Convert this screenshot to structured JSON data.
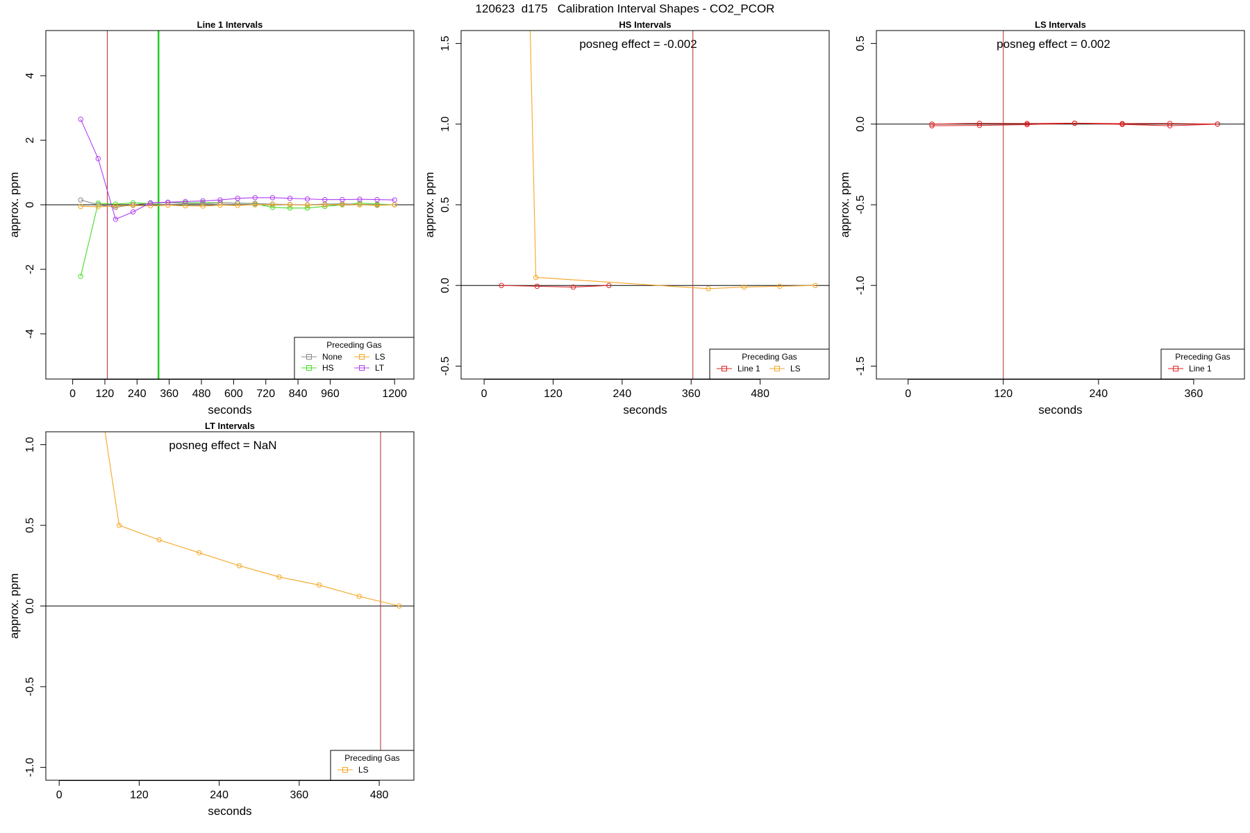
{
  "page_title": "120623  d175   Calibration Interval Shapes - CO2_PCOR",
  "colors": {
    "None": "#888888",
    "HS": "#44dd22",
    "LS": "#f5a623",
    "LT": "#b03cf5",
    "Line 1": "#dd2222",
    "vline_red": "#b02a2a",
    "vline_green": "#22cc22",
    "zero_line": "#000000"
  },
  "chart_data": [
    {
      "type": "line",
      "title": "Line 1 Intervals",
      "xlabel": "seconds",
      "ylabel": "approx. ppm",
      "xlim": [
        -100,
        1272
      ],
      "ylim": [
        -5.4,
        5.4
      ],
      "xticks": [
        0,
        120,
        240,
        360,
        480,
        600,
        720,
        840,
        960,
        1200
      ],
      "yticks": [
        -4,
        -2,
        0,
        2,
        4
      ],
      "zero_line": true,
      "legend": {
        "title": "Preceding Gas",
        "entries": [
          "None",
          "LS",
          "HS",
          "LT"
        ],
        "placement": "bottom-right"
      },
      "vlines": [
        {
          "x": 129,
          "color": "vline_red",
          "width": 1
        },
        {
          "x": 320,
          "color": "vline_green",
          "width": 2.5
        }
      ],
      "series": [
        {
          "name": "HS",
          "x": [
            30,
            95,
            160,
            225,
            290,
            355,
            420,
            485,
            550,
            615,
            680,
            745,
            810,
            875,
            940,
            1005,
            1070,
            1135,
            1200
          ],
          "y": [
            -2.22,
            0.05,
            0.02,
            0.06,
            0.04,
            0.07,
            0.06,
            0.07,
            0.06,
            0.05,
            0.03,
            -0.08,
            -0.1,
            -0.1,
            -0.05,
            0.0,
            0.05,
            0.02,
            0.0
          ]
        },
        {
          "name": "None",
          "x": [
            30,
            95,
            160,
            225,
            290,
            355,
            420,
            485,
            550,
            615,
            680,
            745,
            810,
            875,
            940,
            1005,
            1070,
            1135,
            1200
          ],
          "y": [
            0.15,
            0.0,
            -0.08,
            0.0,
            0.05,
            0.07,
            0.04,
            0.03,
            0.06,
            0.05,
            0.04,
            0.02,
            0.01,
            0.0,
            0.02,
            0.03,
            0.01,
            0.0,
            0.0
          ]
        },
        {
          "name": "LS",
          "x": [
            30,
            95,
            160,
            225,
            290,
            355,
            420,
            485,
            550,
            615,
            680,
            745,
            810,
            875,
            940,
            1005,
            1070,
            1135,
            1200
          ],
          "y": [
            -0.05,
            -0.06,
            -0.04,
            -0.02,
            -0.03,
            -0.01,
            -0.03,
            -0.04,
            -0.01,
            -0.02,
            0.0,
            0.01,
            0.0,
            -0.01,
            0.0,
            0.01,
            0.0,
            -0.02,
            0.0
          ]
        },
        {
          "name": "LT",
          "x": [
            30,
            95,
            160,
            225,
            290,
            355,
            420,
            485,
            550,
            615,
            680,
            745,
            810,
            875,
            940,
            1005,
            1070,
            1135,
            1200
          ],
          "y": [
            2.65,
            1.43,
            -0.45,
            -0.22,
            0.06,
            0.08,
            0.1,
            0.12,
            0.15,
            0.2,
            0.22,
            0.22,
            0.2,
            0.18,
            0.16,
            0.16,
            0.17,
            0.16,
            0.15
          ]
        }
      ]
    },
    {
      "type": "line",
      "title": "HS Intervals",
      "annotation": "posneg effect = -0.002",
      "xlabel": "seconds",
      "ylabel": "approx. ppm",
      "xlim": [
        -40,
        600
      ],
      "ylim": [
        -0.58,
        1.58
      ],
      "xticks": [
        0,
        120,
        240,
        360,
        480
      ],
      "yticks": [
        -0.5,
        0.0,
        0.5,
        1.0,
        1.5
      ],
      "zero_line": true,
      "legend": {
        "title": "Preceding Gas",
        "entries": [
          "Line 1",
          "LS"
        ],
        "placement": "bottom-right"
      },
      "vlines": [
        {
          "x": 363,
          "color": "vline_red",
          "width": 1
        }
      ],
      "series": [
        {
          "name": "Line 1",
          "x": [
            30,
            92,
            155,
            217
          ],
          "y": [
            0.0,
            -0.005,
            -0.01,
            0.0
          ]
        },
        {
          "name": "LS",
          "x": [
            80,
            90,
            390,
            452,
            514,
            576
          ],
          "y": [
            1.6,
            0.05,
            -0.02,
            -0.01,
            -0.005,
            0.0
          ],
          "markers": [
            false,
            true,
            true,
            true,
            true,
            true
          ]
        }
      ]
    },
    {
      "type": "line",
      "title": "LS Intervals",
      "annotation": "posneg effect = 0.002",
      "xlabel": "seconds",
      "ylabel": "approx. ppm",
      "xlim": [
        -40,
        424
      ],
      "ylim": [
        -1.58,
        0.58
      ],
      "xticks": [
        0,
        120,
        240,
        360
      ],
      "yticks": [
        -1.5,
        -1.0,
        -0.5,
        0.0,
        0.5
      ],
      "zero_line": true,
      "legend": {
        "title": "Preceding Gas",
        "entries": [
          "Line 1"
        ],
        "placement": "bottom-right"
      },
      "vlines": [
        {
          "x": 120,
          "color": "vline_red",
          "width": 1
        }
      ],
      "series": [
        {
          "name": "Line 1",
          "x": [
            30,
            90,
            150,
            210,
            270,
            330,
            390
          ],
          "y": [
            -0.01,
            -0.008,
            -0.003,
            0.005,
            -0.002,
            -0.01,
            0.0
          ]
        },
        {
          "name": "Line 1",
          "x": [
            30,
            90,
            150,
            210,
            270,
            330,
            390
          ],
          "y": [
            0.0,
            0.005,
            0.004,
            0.006,
            0.003,
            0.004,
            0.0
          ]
        }
      ]
    },
    {
      "type": "line",
      "title": "LT Intervals",
      "annotation": "posneg effect = NaN",
      "xlabel": "seconds",
      "ylabel": "approx. ppm",
      "xlim": [
        -20,
        532
      ],
      "ylim": [
        -1.08,
        1.08
      ],
      "xticks": [
        0,
        120,
        240,
        360,
        480
      ],
      "yticks": [
        -1.0,
        -0.5,
        0.0,
        0.5,
        1.0
      ],
      "zero_line": true,
      "legend": {
        "title": "Preceding Gas",
        "entries": [
          "LS"
        ],
        "placement": "bottom-right"
      },
      "vlines": [
        {
          "x": 482,
          "color": "vline_red",
          "width": 1
        }
      ],
      "series": [
        {
          "name": "LS",
          "x": [
            68,
            90,
            150,
            210,
            270,
            330,
            390,
            450,
            510
          ],
          "y": [
            1.1,
            0.5,
            0.41,
            0.33,
            0.25,
            0.18,
            0.13,
            0.06,
            0.0
          ],
          "markers": [
            false,
            true,
            true,
            true,
            true,
            true,
            true,
            true,
            true
          ]
        }
      ]
    }
  ]
}
